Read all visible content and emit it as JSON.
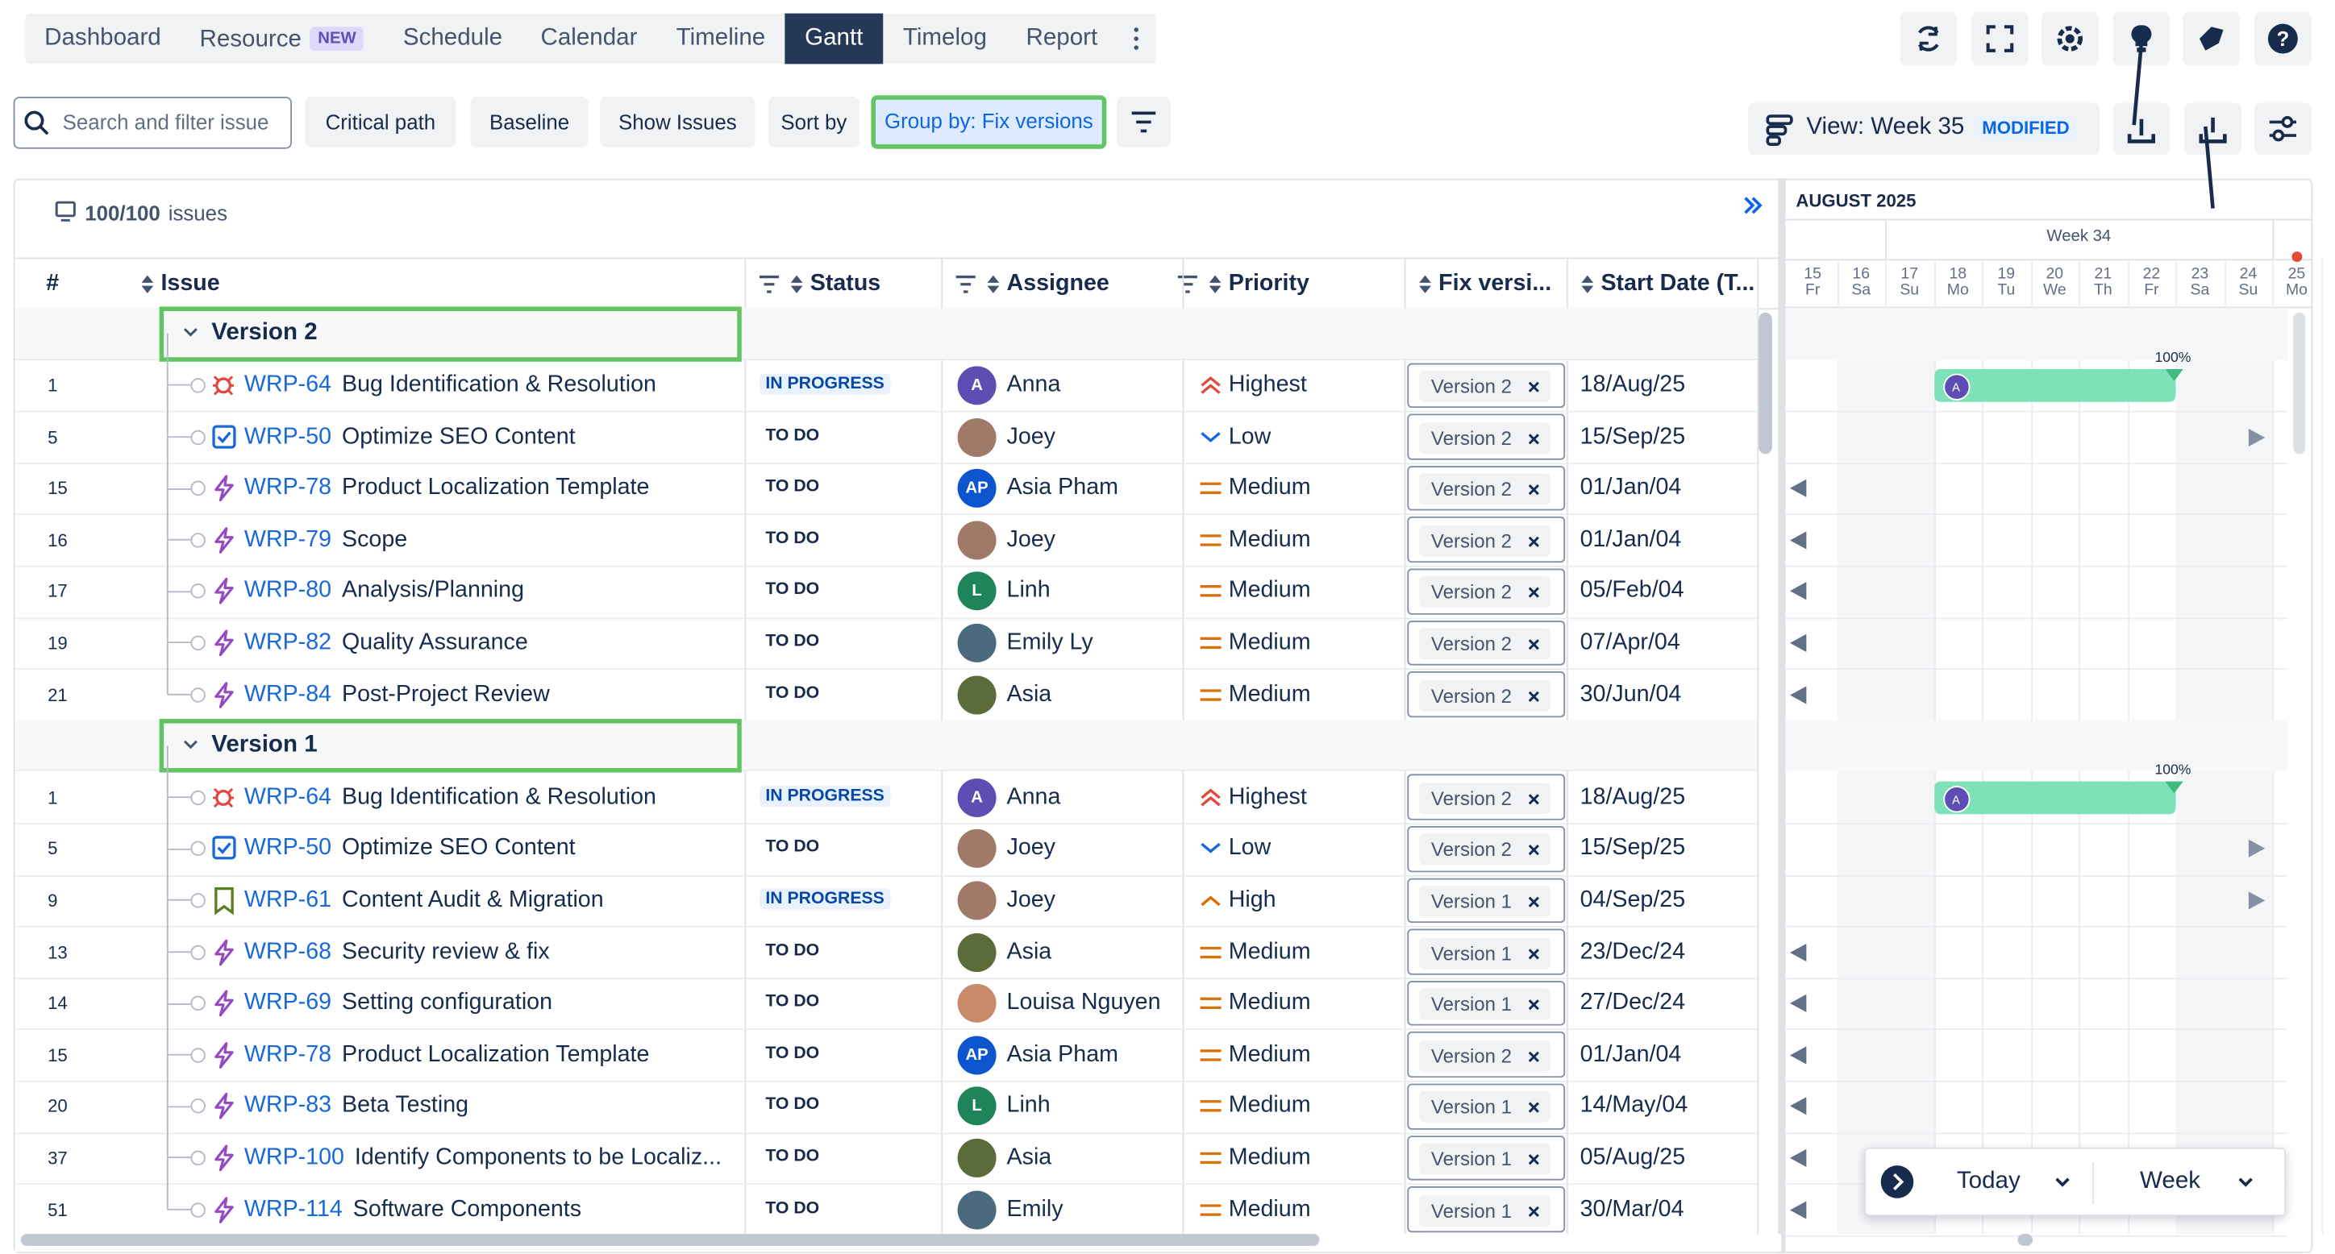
{
  "nav": {
    "tabs": [
      "Dashboard",
      "Resource",
      "Schedule",
      "Calendar",
      "Timeline",
      "Gantt",
      "Timelog",
      "Report"
    ],
    "badge": "NEW",
    "badge_tab": 1,
    "active_tab": 5
  },
  "toolbar": {
    "search_placeholder": "Search and filter issue",
    "buttons": [
      "Critical path",
      "Baseline",
      "Show Issues",
      "Sort by",
      "Group by: Fix versions"
    ],
    "highlighted_button": 4,
    "view": "View: Week 35",
    "view_badge": "MODIFIED"
  },
  "grid": {
    "count": "100/100",
    "count_suffix": "issues",
    "columns": [
      "#",
      "Issue",
      "Status",
      "Assignee",
      "Priority",
      "Fix versi...",
      "Start Date (T..."
    ],
    "groups": [
      {
        "name": "Version 2",
        "rows": [
          {
            "num": 1,
            "key": "WRP-64",
            "summary": "Bug Identification & Resolution",
            "type": "bug",
            "status": "IN PROGRESS",
            "status_tone": "blue",
            "assignee": "Anna",
            "initials": "A",
            "avatar": "#5e4db2",
            "priority": "Highest",
            "prio_icon": "double-up",
            "fix": "Version 2",
            "start": "18/Aug/25",
            "gantt": "bar",
            "progress": "100%"
          },
          {
            "num": 5,
            "key": "WRP-50",
            "summary": "Optimize SEO Content",
            "type": "task",
            "status": "TO DO",
            "status_tone": "gray",
            "assignee": "Joey",
            "avatar": "#a07a68",
            "priority": "Low",
            "prio_icon": "down",
            "fix": "Version 2",
            "start": "15/Sep/25",
            "gantt": "right"
          },
          {
            "num": 15,
            "key": "WRP-78",
            "summary": "Product Localization Template",
            "type": "epic",
            "status": "TO DO",
            "status_tone": "gray",
            "assignee": "Asia Pham",
            "initials": "AP",
            "avatar": "#0c55cf",
            "priority": "Medium",
            "prio_icon": "bars",
            "fix": "Version 2",
            "start": "01/Jan/04",
            "gantt": "left"
          },
          {
            "num": 16,
            "key": "WRP-79",
            "summary": "Scope",
            "type": "epic",
            "status": "TO DO",
            "status_tone": "gray",
            "assignee": "Joey",
            "avatar": "#a07a68",
            "priority": "Medium",
            "prio_icon": "bars",
            "fix": "Version 2",
            "start": "01/Jan/04",
            "gantt": "left"
          },
          {
            "num": 17,
            "key": "WRP-80",
            "summary": "Analysis/Planning",
            "type": "epic",
            "status": "TO DO",
            "status_tone": "gray",
            "assignee": "Linh",
            "initials": "L",
            "avatar": "#1f845a",
            "priority": "Medium",
            "prio_icon": "bars",
            "fix": "Version 2",
            "start": "05/Feb/04",
            "gantt": "left"
          },
          {
            "num": 19,
            "key": "WRP-82",
            "summary": "Quality Assurance",
            "type": "epic",
            "status": "TO DO",
            "status_tone": "gray",
            "assignee": "Emily Ly",
            "avatar": "#4b6a7e",
            "priority": "Medium",
            "prio_icon": "bars",
            "fix": "Version 2",
            "start": "07/Apr/04",
            "gantt": "left"
          },
          {
            "num": 21,
            "key": "WRP-84",
            "summary": "Post-Project Review",
            "type": "epic",
            "status": "TO DO",
            "status_tone": "gray",
            "assignee": "Asia",
            "avatar": "#5b6b3a",
            "priority": "Medium",
            "prio_icon": "bars",
            "fix": "Version 2",
            "start": "30/Jun/04",
            "gantt": "left"
          }
        ]
      },
      {
        "name": "Version 1",
        "rows": [
          {
            "num": 1,
            "key": "WRP-64",
            "summary": "Bug Identification & Resolution",
            "type": "bug",
            "status": "IN PROGRESS",
            "status_tone": "blue",
            "assignee": "Anna",
            "initials": "A",
            "avatar": "#5e4db2",
            "priority": "Highest",
            "prio_icon": "double-up",
            "fix": "Version 2",
            "start": "18/Aug/25",
            "gantt": "bar",
            "progress": "100%"
          },
          {
            "num": 5,
            "key": "WRP-50",
            "summary": "Optimize SEO Content",
            "type": "task",
            "status": "TO DO",
            "status_tone": "gray",
            "assignee": "Joey",
            "avatar": "#a07a68",
            "priority": "Low",
            "prio_icon": "down",
            "fix": "Version 2",
            "start": "15/Sep/25",
            "gantt": "right"
          },
          {
            "num": 9,
            "key": "WRP-61",
            "summary": "Content Audit & Migration",
            "type": "story",
            "status": "IN PROGRESS",
            "status_tone": "blue",
            "assignee": "Joey",
            "avatar": "#a07a68",
            "priority": "High",
            "prio_icon": "up",
            "fix": "Version 1",
            "start": "04/Sep/25",
            "gantt": "right"
          },
          {
            "num": 13,
            "key": "WRP-68",
            "summary": "Security review & fix",
            "type": "epic",
            "status": "TO DO",
            "status_tone": "gray",
            "assignee": "Asia",
            "avatar": "#5b6b3a",
            "priority": "Medium",
            "prio_icon": "bars",
            "fix": "Version 1",
            "start": "23/Dec/24",
            "gantt": "left"
          },
          {
            "num": 14,
            "key": "WRP-69",
            "summary": "Setting configuration",
            "type": "epic",
            "status": "TO DO",
            "status_tone": "gray",
            "assignee": "Louisa Nguyen",
            "avatar": "#c98a6a",
            "priority": "Medium",
            "prio_icon": "bars",
            "fix": "Version 1",
            "start": "27/Dec/24",
            "gantt": "left"
          },
          {
            "num": 15,
            "key": "WRP-78",
            "summary": "Product Localization Template",
            "type": "epic",
            "status": "TO DO",
            "status_tone": "gray",
            "assignee": "Asia Pham",
            "initials": "AP",
            "avatar": "#0c55cf",
            "priority": "Medium",
            "prio_icon": "bars",
            "fix": "Version 2",
            "start": "01/Jan/04",
            "gantt": "left"
          },
          {
            "num": 20,
            "key": "WRP-83",
            "summary": "Beta Testing",
            "type": "epic",
            "status": "TO DO",
            "status_tone": "gray",
            "assignee": "Linh",
            "initials": "L",
            "avatar": "#1f845a",
            "priority": "Medium",
            "prio_icon": "bars",
            "fix": "Version 1",
            "start": "14/May/04",
            "gantt": "left"
          },
          {
            "num": 37,
            "key": "WRP-100",
            "summary": "Identify Components to be Localiz...",
            "type": "epic",
            "status": "TO DO",
            "status_tone": "gray",
            "assignee": "Asia",
            "avatar": "#5b6b3a",
            "priority": "Medium",
            "prio_icon": "bars",
            "fix": "Version 1",
            "start": "05/Aug/25",
            "gantt": "left"
          },
          {
            "num": 51,
            "key": "WRP-114",
            "summary": "Software Components",
            "type": "epic",
            "status": "TO DO",
            "status_tone": "gray",
            "assignee": "Emily",
            "avatar": "#4b6a7e",
            "priority": "Medium",
            "prio_icon": "bars",
            "fix": "Version 1",
            "start": "30/Mar/04",
            "gantt": "left"
          }
        ]
      }
    ]
  },
  "gantt": {
    "month": "AUGUST 2025",
    "week": "Week 34",
    "days": [
      [
        "15",
        "Fr"
      ],
      [
        "16",
        "Sa"
      ],
      [
        "17",
        "Su"
      ],
      [
        "18",
        "Mo"
      ],
      [
        "19",
        "Tu"
      ],
      [
        "20",
        "We"
      ],
      [
        "21",
        "Th"
      ],
      [
        "22",
        "Fr"
      ],
      [
        "23",
        "Sa"
      ],
      [
        "24",
        "Su"
      ],
      [
        "25",
        "Mo"
      ]
    ],
    "weekend_days": [
      1,
      2,
      8,
      9
    ],
    "week_start_day": 2,
    "week_end_day": 9,
    "bar_start_day": 3,
    "bar_end_day": 7
  },
  "footer": {
    "today": "Today",
    "scale": "Week"
  }
}
